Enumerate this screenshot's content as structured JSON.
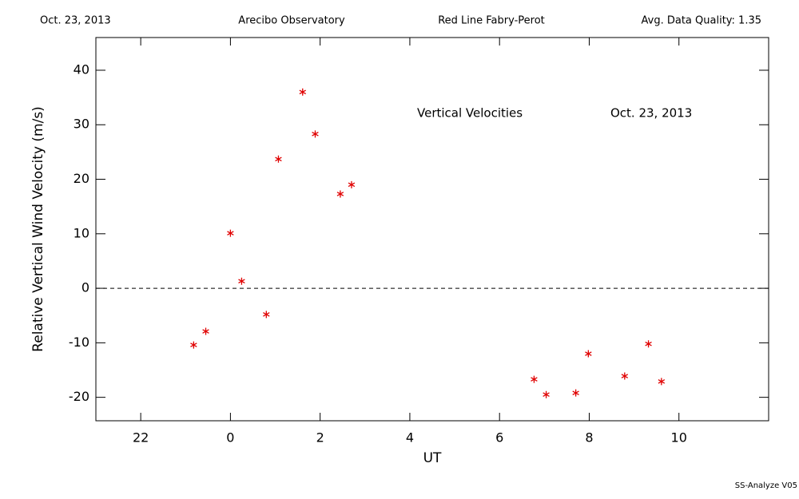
{
  "chart_data": {
    "type": "scatter",
    "header": [
      "Oct. 23, 2013",
      "Arecibo Observatory",
      "Red Line Fabry-Perot",
      "Avg. Data Quality: 1.35"
    ],
    "annotations": [
      "Vertical Velocities",
      "Oct. 23, 2013"
    ],
    "footer": "SS-Analyze V05",
    "x_label": "UT",
    "y_label": "Relative Vertical Wind Velocity (m/s)",
    "xlim": [
      -3,
      12
    ],
    "xticks": [
      {
        "value": -2,
        "label": "22"
      },
      0,
      2,
      4,
      6,
      8,
      10
    ],
    "ylim": [
      -24.3,
      46
    ],
    "yticks": [
      -20,
      -10,
      0,
      10,
      20,
      30,
      40
    ],
    "hline": 0,
    "color": "#e00000",
    "x": [
      -0.82,
      -0.55,
      0.0,
      0.25,
      0.8,
      1.07,
      1.61,
      1.89,
      2.45,
      2.7,
      6.77,
      7.04,
      7.7,
      7.98,
      8.79,
      9.32,
      9.61
    ],
    "values": [
      -10.4,
      -7.9,
      10.1,
      1.3,
      -4.8,
      23.7,
      36.0,
      28.3,
      17.3,
      19.0,
      -16.7,
      -19.5,
      -19.2,
      -12.0,
      -16.1,
      -10.2,
      -17.1
    ]
  }
}
